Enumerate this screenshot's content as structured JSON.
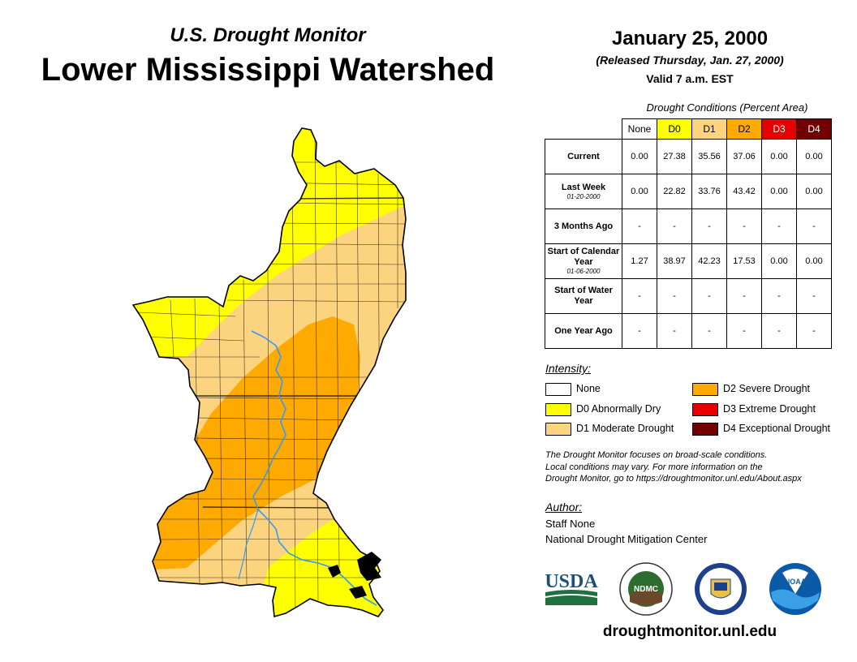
{
  "header": {
    "subtitle": "U.S. Drought Monitor",
    "title": "Lower Mississippi Watershed",
    "date": "January 25, 2000",
    "released": "(Released Thursday, Jan. 27, 2000)",
    "valid": "Valid 7 a.m. EST"
  },
  "table": {
    "caption": "Drought Conditions (Percent Area)",
    "columns": [
      "None",
      "D0",
      "D1",
      "D2",
      "D3",
      "D4"
    ],
    "column_colors": [
      "#ffffff",
      "#ffff00",
      "#fcd37f",
      "#ffaa00",
      "#e60000",
      "#730000"
    ],
    "rows": [
      {
        "label": "Current",
        "sublabel": "",
        "values": [
          "0.00",
          "27.38",
          "35.56",
          "37.06",
          "0.00",
          "0.00"
        ]
      },
      {
        "label": "Last Week",
        "sublabel": "01-20-2000",
        "values": [
          "0.00",
          "22.82",
          "33.76",
          "43.42",
          "0.00",
          "0.00"
        ]
      },
      {
        "label": "3 Months Ago",
        "sublabel": "",
        "values": [
          "-",
          "-",
          "-",
          "-",
          "-",
          "-"
        ]
      },
      {
        "label": "Start of Calendar Year",
        "sublabel": "01-06-2000",
        "values": [
          "1.27",
          "38.97",
          "42.23",
          "17.53",
          "0.00",
          "0.00"
        ]
      },
      {
        "label": "Start of Water Year",
        "sublabel": "",
        "values": [
          "-",
          "-",
          "-",
          "-",
          "-",
          "-"
        ]
      },
      {
        "label": "One Year Ago",
        "sublabel": "",
        "values": [
          "-",
          "-",
          "-",
          "-",
          "-",
          "-"
        ]
      }
    ]
  },
  "legend": {
    "title": "Intensity:",
    "items": [
      {
        "label": "None",
        "color": "#ffffff"
      },
      {
        "label": "D0 Abnormally Dry",
        "color": "#ffff00"
      },
      {
        "label": "D1 Moderate Drought",
        "color": "#fcd37f"
      },
      {
        "label": "D2 Severe Drought",
        "color": "#ffaa00"
      },
      {
        "label": "D3 Extreme Drought",
        "color": "#e60000"
      },
      {
        "label": "D4 Exceptional Drought",
        "color": "#730000"
      }
    ]
  },
  "note": {
    "line1": "The Drought Monitor focuses on broad-scale conditions.",
    "line2": "Local conditions may vary. For more information on the",
    "line3": "Drought Monitor, go to https://droughtmonitor.unl.edu/About.aspx"
  },
  "author": {
    "title": "Author:",
    "name": "Staff None",
    "org": "National Drought Mitigation Center"
  },
  "logos": {
    "usda": "USDA",
    "ndmc": "NDMC",
    "noaa": "NOAA"
  },
  "footer": {
    "website": "droughtmonitor.unl.edu"
  },
  "colors": {
    "river": "#3399ff",
    "none": "#ffffff",
    "d0": "#ffff00",
    "d1": "#fcd37f",
    "d2": "#ffaa00",
    "d3": "#e60000",
    "d4": "#730000"
  }
}
